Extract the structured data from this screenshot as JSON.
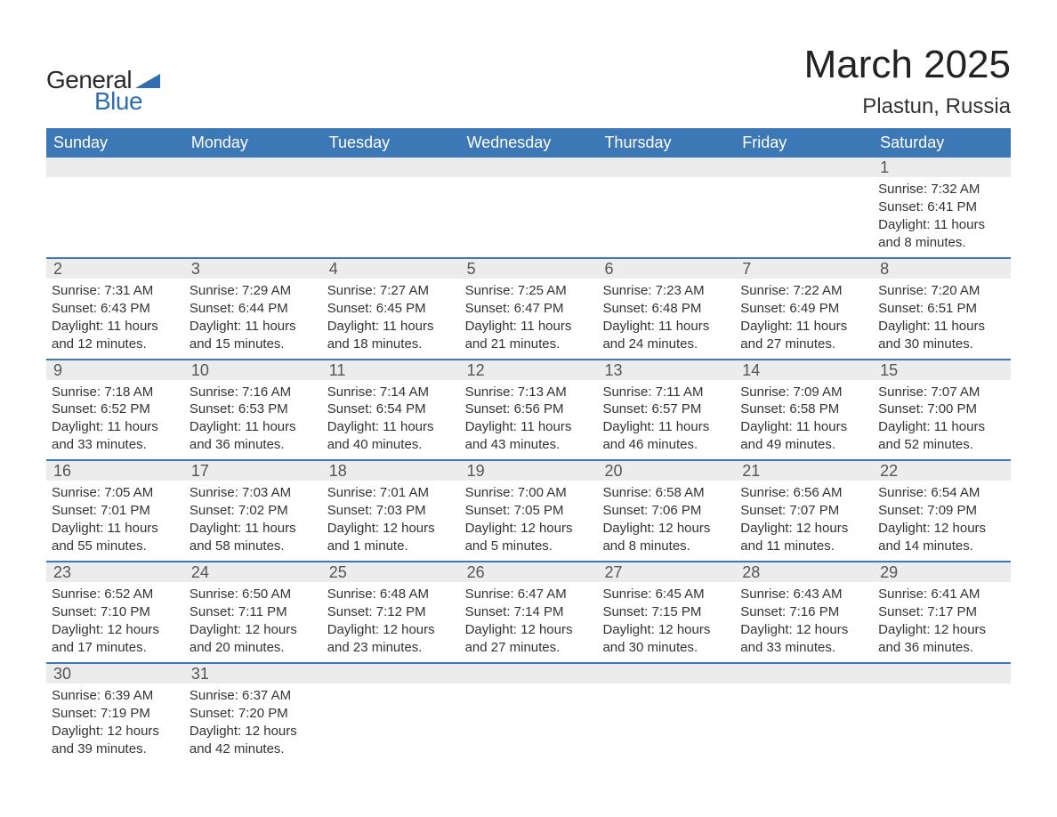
{
  "logo": {
    "text_general": "General",
    "text_blue": "Blue",
    "wedge_color": "#2f6fae"
  },
  "title": "March 2025",
  "location": "Plastun, Russia",
  "colors": {
    "header_bg": "#3d78b6",
    "header_text": "#ffffff",
    "daynum_bg": "#ececec",
    "daynum_text": "#555555",
    "body_text": "#333333",
    "row_border": "#3d78b6",
    "page_bg": "#ffffff"
  },
  "weekdays": [
    "Sunday",
    "Monday",
    "Tuesday",
    "Wednesday",
    "Thursday",
    "Friday",
    "Saturday"
  ],
  "weeks": [
    [
      null,
      null,
      null,
      null,
      null,
      null,
      {
        "day": "1",
        "sunrise": "Sunrise: 7:32 AM",
        "sunset": "Sunset: 6:41 PM",
        "daylight": "Daylight: 11 hours and 8 minutes."
      }
    ],
    [
      {
        "day": "2",
        "sunrise": "Sunrise: 7:31 AM",
        "sunset": "Sunset: 6:43 PM",
        "daylight": "Daylight: 11 hours and 12 minutes."
      },
      {
        "day": "3",
        "sunrise": "Sunrise: 7:29 AM",
        "sunset": "Sunset: 6:44 PM",
        "daylight": "Daylight: 11 hours and 15 minutes."
      },
      {
        "day": "4",
        "sunrise": "Sunrise: 7:27 AM",
        "sunset": "Sunset: 6:45 PM",
        "daylight": "Daylight: 11 hours and 18 minutes."
      },
      {
        "day": "5",
        "sunrise": "Sunrise: 7:25 AM",
        "sunset": "Sunset: 6:47 PM",
        "daylight": "Daylight: 11 hours and 21 minutes."
      },
      {
        "day": "6",
        "sunrise": "Sunrise: 7:23 AM",
        "sunset": "Sunset: 6:48 PM",
        "daylight": "Daylight: 11 hours and 24 minutes."
      },
      {
        "day": "7",
        "sunrise": "Sunrise: 7:22 AM",
        "sunset": "Sunset: 6:49 PM",
        "daylight": "Daylight: 11 hours and 27 minutes."
      },
      {
        "day": "8",
        "sunrise": "Sunrise: 7:20 AM",
        "sunset": "Sunset: 6:51 PM",
        "daylight": "Daylight: 11 hours and 30 minutes."
      }
    ],
    [
      {
        "day": "9",
        "sunrise": "Sunrise: 7:18 AM",
        "sunset": "Sunset: 6:52 PM",
        "daylight": "Daylight: 11 hours and 33 minutes."
      },
      {
        "day": "10",
        "sunrise": "Sunrise: 7:16 AM",
        "sunset": "Sunset: 6:53 PM",
        "daylight": "Daylight: 11 hours and 36 minutes."
      },
      {
        "day": "11",
        "sunrise": "Sunrise: 7:14 AM",
        "sunset": "Sunset: 6:54 PM",
        "daylight": "Daylight: 11 hours and 40 minutes."
      },
      {
        "day": "12",
        "sunrise": "Sunrise: 7:13 AM",
        "sunset": "Sunset: 6:56 PM",
        "daylight": "Daylight: 11 hours and 43 minutes."
      },
      {
        "day": "13",
        "sunrise": "Sunrise: 7:11 AM",
        "sunset": "Sunset: 6:57 PM",
        "daylight": "Daylight: 11 hours and 46 minutes."
      },
      {
        "day": "14",
        "sunrise": "Sunrise: 7:09 AM",
        "sunset": "Sunset: 6:58 PM",
        "daylight": "Daylight: 11 hours and 49 minutes."
      },
      {
        "day": "15",
        "sunrise": "Sunrise: 7:07 AM",
        "sunset": "Sunset: 7:00 PM",
        "daylight": "Daylight: 11 hours and 52 minutes."
      }
    ],
    [
      {
        "day": "16",
        "sunrise": "Sunrise: 7:05 AM",
        "sunset": "Sunset: 7:01 PM",
        "daylight": "Daylight: 11 hours and 55 minutes."
      },
      {
        "day": "17",
        "sunrise": "Sunrise: 7:03 AM",
        "sunset": "Sunset: 7:02 PM",
        "daylight": "Daylight: 11 hours and 58 minutes."
      },
      {
        "day": "18",
        "sunrise": "Sunrise: 7:01 AM",
        "sunset": "Sunset: 7:03 PM",
        "daylight": "Daylight: 12 hours and 1 minute."
      },
      {
        "day": "19",
        "sunrise": "Sunrise: 7:00 AM",
        "sunset": "Sunset: 7:05 PM",
        "daylight": "Daylight: 12 hours and 5 minutes."
      },
      {
        "day": "20",
        "sunrise": "Sunrise: 6:58 AM",
        "sunset": "Sunset: 7:06 PM",
        "daylight": "Daylight: 12 hours and 8 minutes."
      },
      {
        "day": "21",
        "sunrise": "Sunrise: 6:56 AM",
        "sunset": "Sunset: 7:07 PM",
        "daylight": "Daylight: 12 hours and 11 minutes."
      },
      {
        "day": "22",
        "sunrise": "Sunrise: 6:54 AM",
        "sunset": "Sunset: 7:09 PM",
        "daylight": "Daylight: 12 hours and 14 minutes."
      }
    ],
    [
      {
        "day": "23",
        "sunrise": "Sunrise: 6:52 AM",
        "sunset": "Sunset: 7:10 PM",
        "daylight": "Daylight: 12 hours and 17 minutes."
      },
      {
        "day": "24",
        "sunrise": "Sunrise: 6:50 AM",
        "sunset": "Sunset: 7:11 PM",
        "daylight": "Daylight: 12 hours and 20 minutes."
      },
      {
        "day": "25",
        "sunrise": "Sunrise: 6:48 AM",
        "sunset": "Sunset: 7:12 PM",
        "daylight": "Daylight: 12 hours and 23 minutes."
      },
      {
        "day": "26",
        "sunrise": "Sunrise: 6:47 AM",
        "sunset": "Sunset: 7:14 PM",
        "daylight": "Daylight: 12 hours and 27 minutes."
      },
      {
        "day": "27",
        "sunrise": "Sunrise: 6:45 AM",
        "sunset": "Sunset: 7:15 PM",
        "daylight": "Daylight: 12 hours and 30 minutes."
      },
      {
        "day": "28",
        "sunrise": "Sunrise: 6:43 AM",
        "sunset": "Sunset: 7:16 PM",
        "daylight": "Daylight: 12 hours and 33 minutes."
      },
      {
        "day": "29",
        "sunrise": "Sunrise: 6:41 AM",
        "sunset": "Sunset: 7:17 PM",
        "daylight": "Daylight: 12 hours and 36 minutes."
      }
    ],
    [
      {
        "day": "30",
        "sunrise": "Sunrise: 6:39 AM",
        "sunset": "Sunset: 7:19 PM",
        "daylight": "Daylight: 12 hours and 39 minutes."
      },
      {
        "day": "31",
        "sunrise": "Sunrise: 6:37 AM",
        "sunset": "Sunset: 7:20 PM",
        "daylight": "Daylight: 12 hours and 42 minutes."
      },
      null,
      null,
      null,
      null,
      null
    ]
  ]
}
